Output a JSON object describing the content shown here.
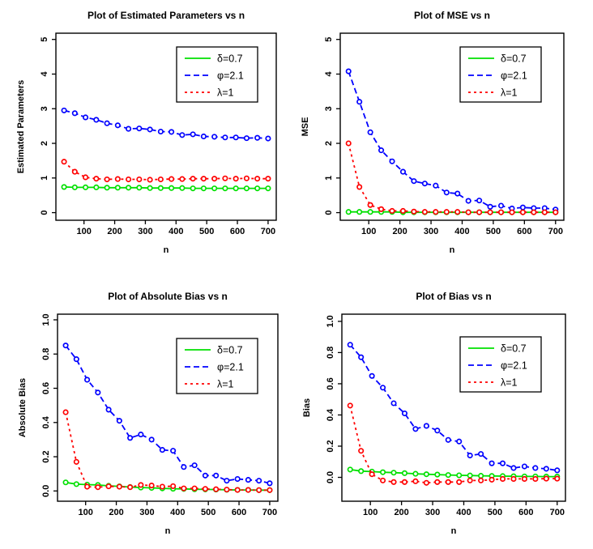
{
  "page": {
    "background": "#ffffff",
    "figure_label": "2x2 grid of R line plots"
  },
  "chart_data": [
    {
      "type": "line",
      "title": "Plot of Estimated Parameters vs n",
      "xlabel": "n",
      "ylabel": "Estimated Parameters",
      "x": [
        35,
        70,
        105,
        140,
        175,
        210,
        245,
        280,
        315,
        350,
        385,
        420,
        455,
        490,
        525,
        560,
        595,
        630,
        665,
        700
      ],
      "xlim": [
        8.4,
        726.6
      ],
      "ylim": [
        -0.22,
        5.18
      ],
      "xticks": [
        100,
        200,
        300,
        400,
        500,
        600,
        700
      ],
      "xtick_labels": [
        "100",
        "200",
        "300",
        "400",
        "500",
        "600",
        "700"
      ],
      "yticks": [
        0,
        1,
        2,
        3,
        4,
        5
      ],
      "ytick_labels": [
        "0",
        "1",
        "2",
        "3",
        "4",
        "5"
      ],
      "grid": false,
      "legend_pos": {
        "x": 218,
        "y": 58
      },
      "series": [
        {
          "name": "δ=0.7",
          "color": "#00E000",
          "dash": "",
          "values": [
            0.74,
            0.73,
            0.73,
            0.73,
            0.72,
            0.72,
            0.72,
            0.72,
            0.71,
            0.71,
            0.71,
            0.71,
            0.7,
            0.7,
            0.7,
            0.7,
            0.7,
            0.7,
            0.7,
            0.7
          ]
        },
        {
          "name": "φ=2.1",
          "color": "#0000FF",
          "dash": "7,4",
          "values": [
            2.95,
            2.87,
            2.75,
            2.68,
            2.58,
            2.52,
            2.42,
            2.43,
            2.4,
            2.34,
            2.33,
            2.24,
            2.26,
            2.2,
            2.19,
            2.17,
            2.17,
            2.15,
            2.16,
            2.14
          ]
        },
        {
          "name": "λ=1",
          "color": "#FF0000",
          "dash": "3,4",
          "values": [
            1.47,
            1.18,
            1.02,
            0.98,
            0.96,
            0.97,
            0.96,
            0.96,
            0.95,
            0.96,
            0.97,
            0.97,
            0.98,
            0.98,
            0.98,
            0.99,
            0.98,
            0.99,
            0.98,
            0.98
          ]
        }
      ]
    },
    {
      "type": "line",
      "title": "Plot of MSE vs n",
      "xlabel": "n",
      "ylabel": "MSE",
      "x": [
        35,
        70,
        105,
        140,
        175,
        210,
        245,
        280,
        315,
        350,
        385,
        420,
        455,
        490,
        525,
        560,
        595,
        630,
        665,
        700
      ],
      "xlim": [
        8.4,
        726.6
      ],
      "ylim": [
        -0.22,
        5.18
      ],
      "xticks": [
        100,
        200,
        300,
        400,
        500,
        600,
        700
      ],
      "xtick_labels": [
        "100",
        "200",
        "300",
        "400",
        "500",
        "600",
        "700"
      ],
      "yticks": [
        0,
        1,
        2,
        3,
        4,
        5
      ],
      "ytick_labels": [
        "0",
        "1",
        "2",
        "3",
        "4",
        "5"
      ],
      "grid": false,
      "legend_pos": {
        "x": 202,
        "y": 58
      },
      "series": [
        {
          "name": "δ=0.7",
          "color": "#00E000",
          "dash": "",
          "values": [
            0.02,
            0.02,
            0.02,
            0.02,
            0.02,
            0.01,
            0.01,
            0.01,
            0.01,
            0.01,
            0.01,
            0.01,
            0.01,
            0.01,
            0.01,
            0.01,
            0.01,
            0.01,
            0.01,
            0.01
          ]
        },
        {
          "name": "φ=2.1",
          "color": "#0000FF",
          "dash": "7,4",
          "values": [
            4.08,
            3.2,
            2.32,
            1.8,
            1.48,
            1.18,
            0.91,
            0.84,
            0.78,
            0.58,
            0.55,
            0.34,
            0.35,
            0.17,
            0.2,
            0.12,
            0.15,
            0.13,
            0.13,
            0.09
          ]
        },
        {
          "name": "λ=1",
          "color": "#FF0000",
          "dash": "3,4",
          "values": [
            2.0,
            0.74,
            0.22,
            0.1,
            0.05,
            0.05,
            0.03,
            0.02,
            0.02,
            0.02,
            0.02,
            0.01,
            0.01,
            0.01,
            0.01,
            0.01,
            0.01,
            0.01,
            0.01,
            0.01
          ]
        }
      ]
    },
    {
      "type": "line",
      "title": "Plot of Absolute Bias vs n",
      "xlabel": "n",
      "ylabel": "Absolute Bias",
      "x": [
        35,
        70,
        105,
        140,
        175,
        210,
        245,
        280,
        315,
        350,
        385,
        420,
        455,
        490,
        525,
        560,
        595,
        630,
        665,
        700
      ],
      "xlim": [
        8.4,
        726.6
      ],
      "ylim": [
        -0.06,
        1.033
      ],
      "xticks": [
        100,
        200,
        300,
        400,
        500,
        600,
        700
      ],
      "xtick_labels": [
        "100",
        "200",
        "300",
        "400",
        "500",
        "600",
        "700"
      ],
      "yticks": [
        0,
        0.2,
        0.4,
        0.6,
        0.8,
        1.0
      ],
      "ytick_labels": [
        "0.0",
        "0.2",
        "0.4",
        "0.6",
        "0.8",
        "1.0"
      ],
      "grid": false,
      "legend_pos": {
        "x": 218,
        "y": 79
      },
      "series": [
        {
          "name": "δ=0.7",
          "color": "#00E000",
          "dash": "",
          "values": [
            0.05,
            0.04,
            0.037,
            0.035,
            0.03,
            0.027,
            0.023,
            0.02,
            0.018,
            0.015,
            0.013,
            0.012,
            0.01,
            0.009,
            0.008,
            0.007,
            0.006,
            0.006,
            0.005,
            0.005
          ]
        },
        {
          "name": "φ=2.1",
          "color": "#0000FF",
          "dash": "7,4",
          "values": [
            0.85,
            0.77,
            0.65,
            0.575,
            0.475,
            0.41,
            0.31,
            0.33,
            0.3,
            0.24,
            0.235,
            0.14,
            0.15,
            0.09,
            0.09,
            0.06,
            0.07,
            0.065,
            0.06,
            0.045
          ]
        },
        {
          "name": "λ=1",
          "color": "#FF0000",
          "dash": "3,4",
          "values": [
            0.46,
            0.17,
            0.025,
            0.022,
            0.027,
            0.025,
            0.022,
            0.035,
            0.032,
            0.025,
            0.028,
            0.015,
            0.015,
            0.012,
            0.01,
            0.008,
            0.006,
            0.006,
            0.005,
            0.005
          ]
        }
      ]
    },
    {
      "type": "line",
      "title": "Plot of Bias vs n",
      "xlabel": "n",
      "ylabel": "Bias",
      "x": [
        35,
        70,
        105,
        140,
        175,
        210,
        245,
        280,
        315,
        350,
        385,
        420,
        455,
        490,
        525,
        560,
        595,
        630,
        665,
        700
      ],
      "xlim": [
        8.4,
        726.6
      ],
      "ylim": [
        -0.153,
        1.046
      ],
      "xticks": [
        100,
        200,
        300,
        400,
        500,
        600,
        700
      ],
      "xtick_labels": [
        "100",
        "200",
        "300",
        "400",
        "500",
        "600",
        "700"
      ],
      "yticks": [
        0,
        0.2,
        0.4,
        0.6,
        0.8,
        1.0
      ],
      "ytick_labels": [
        "0.0",
        "0.2",
        "0.4",
        "0.6",
        "0.8",
        "1.0"
      ],
      "grid": false,
      "legend_pos": {
        "x": 202,
        "y": 77
      },
      "series": [
        {
          "name": "δ=0.7",
          "color": "#00E000",
          "dash": "",
          "values": [
            0.05,
            0.04,
            0.037,
            0.033,
            0.03,
            0.027,
            0.023,
            0.02,
            0.018,
            0.015,
            0.013,
            0.012,
            0.01,
            0.009,
            0.008,
            0.007,
            0.006,
            0.006,
            0.005,
            0.005
          ]
        },
        {
          "name": "φ=2.1",
          "color": "#0000FF",
          "dash": "7,4",
          "values": [
            0.85,
            0.77,
            0.65,
            0.575,
            0.475,
            0.41,
            0.31,
            0.33,
            0.3,
            0.24,
            0.23,
            0.14,
            0.15,
            0.09,
            0.09,
            0.06,
            0.07,
            0.06,
            0.055,
            0.045
          ]
        },
        {
          "name": "λ=1",
          "color": "#FF0000",
          "dash": "3,4",
          "values": [
            0.46,
            0.17,
            0.02,
            -0.02,
            -0.03,
            -0.03,
            -0.025,
            -0.035,
            -0.03,
            -0.03,
            -0.03,
            -0.02,
            -0.02,
            -0.015,
            -0.01,
            -0.01,
            -0.01,
            -0.01,
            -0.008,
            -0.008
          ]
        }
      ]
    }
  ]
}
